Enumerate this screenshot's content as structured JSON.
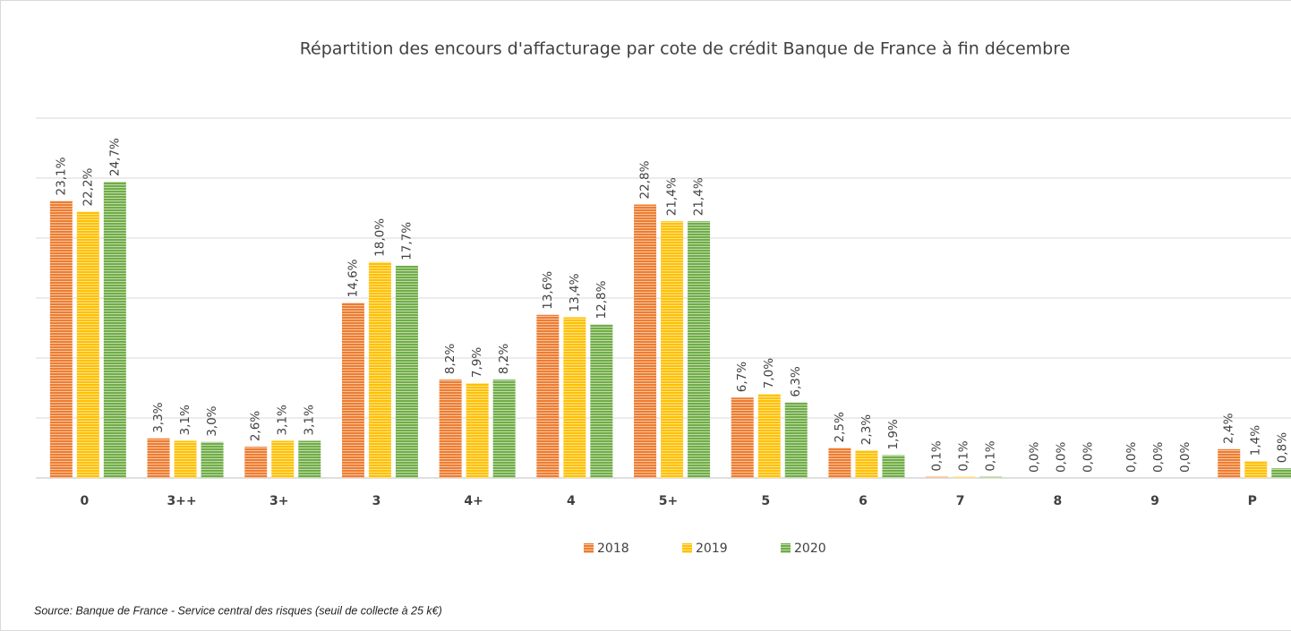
{
  "chart_data": {
    "type": "bar",
    "title": "Répartition des encours d'affacturage par cote de crédit Banque de France à fin décembre",
    "source": "Source: Banque de France - Service central des risques (seuil de collecte à 25 k€)",
    "categories": [
      "0",
      "3++",
      "3+",
      "3",
      "4+",
      "4",
      "5+",
      "5",
      "6",
      "7",
      "8",
      "9",
      "P"
    ],
    "series": [
      {
        "name": "2018",
        "color": "#ed7d31",
        "values": [
          23.1,
          3.3,
          2.6,
          14.6,
          8.2,
          13.6,
          22.8,
          6.7,
          2.5,
          0.1,
          0.0,
          0.0,
          2.4
        ],
        "value_labels": [
          "23,1%",
          "3,3%",
          "2,6%",
          "14,6%",
          "8,2%",
          "13,6%",
          "22,8%",
          "6,7%",
          "2,5%",
          "0,1%",
          "0,0%",
          "0,0%",
          "2,4%"
        ]
      },
      {
        "name": "2019",
        "color": "#ffc000",
        "values": [
          22.2,
          3.1,
          3.1,
          18.0,
          7.9,
          13.4,
          21.4,
          7.0,
          2.3,
          0.1,
          0.0,
          0.0,
          1.4
        ],
        "value_labels": [
          "22,2%",
          "3,1%",
          "3,1%",
          "18,0%",
          "7,9%",
          "13,4%",
          "21,4%",
          "7,0%",
          "2,3%",
          "0,1%",
          "0,0%",
          "0,0%",
          "1,4%"
        ]
      },
      {
        "name": "2020",
        "color": "#70ad47",
        "values": [
          24.7,
          3.0,
          3.1,
          17.7,
          8.2,
          12.8,
          21.4,
          6.3,
          1.9,
          0.1,
          0.0,
          0.0,
          0.8
        ],
        "value_labels": [
          "24,7%",
          "3,0%",
          "3,1%",
          "17,7%",
          "8,2%",
          "12,8%",
          "21,4%",
          "6,3%",
          "1,9%",
          "0,1%",
          "0,0%",
          "0,0%",
          "0,8%"
        ]
      }
    ],
    "ylim": [
      0,
      30
    ],
    "yticks": [
      0,
      5,
      10,
      15,
      20,
      25,
      30
    ],
    "grid": true,
    "legend": "bottom"
  }
}
